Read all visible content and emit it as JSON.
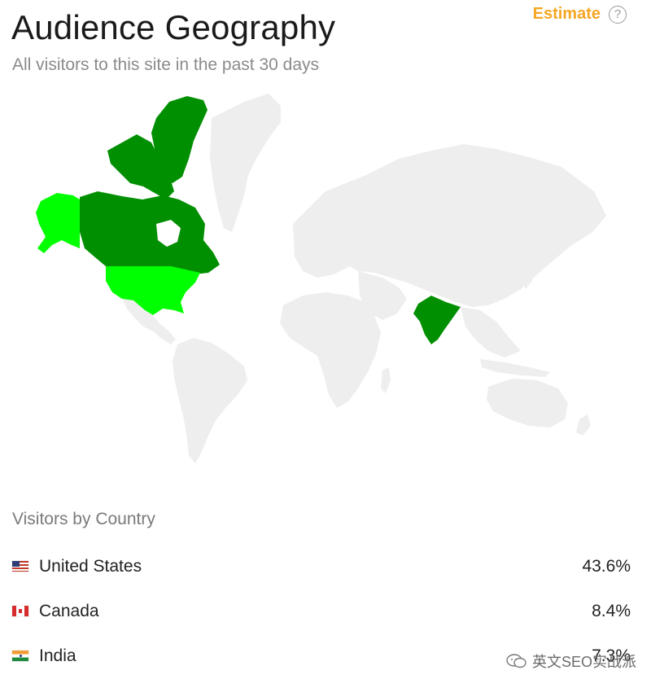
{
  "header": {
    "title": "Audience Geography",
    "subtitle": "All visitors to this site in the past 30 days",
    "estimate_label": "Estimate",
    "help_glyph": "?"
  },
  "map": {
    "highlight_colors": {
      "top": "#008f00",
      "high": "#00ff00",
      "base": "#eeeeee"
    },
    "highlighted_regions": [
      {
        "region": "Canada",
        "color": "#008f00"
      },
      {
        "region": "Greenland",
        "color": "#008f00"
      },
      {
        "region": "India",
        "color": "#008f00"
      },
      {
        "region": "United States",
        "color": "#00ff00"
      },
      {
        "region": "Alaska",
        "color": "#00ff00"
      }
    ]
  },
  "visitors": {
    "section_title": "Visitors by Country",
    "rows": [
      {
        "country": "United States",
        "percent": "43.6%",
        "flag": "us-flag-icon"
      },
      {
        "country": "Canada",
        "percent": "8.4%",
        "flag": "canada-flag-icon"
      },
      {
        "country": "India",
        "percent": "7.3%",
        "flag": "india-flag-icon"
      }
    ]
  },
  "watermark": {
    "text": "英文SEO实战派",
    "icon": "wechat-icon"
  }
}
